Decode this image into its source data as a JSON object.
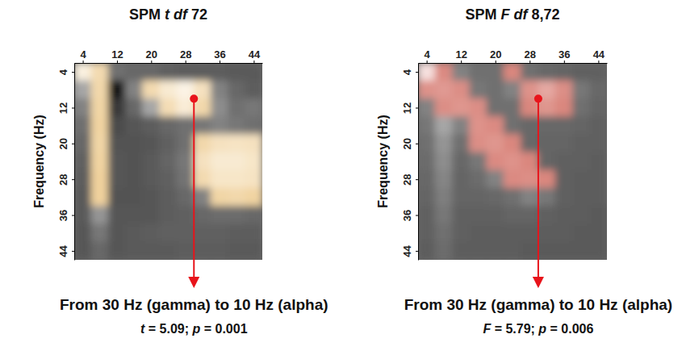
{
  "chart_data": [
    {
      "type": "heatmap",
      "title": "SPM t df 72",
      "ylabel": "Frequency (Hz)",
      "x": [
        4,
        8,
        12,
        16,
        20,
        24,
        28,
        32,
        36,
        40,
        44
      ],
      "y": [
        4,
        8,
        12,
        16,
        20,
        24,
        28,
        32,
        36,
        40,
        44
      ],
      "values": [
        [
          4.5,
          3.5,
          1.0,
          0.8,
          0.8,
          0.6,
          0.5,
          0.5,
          0.5,
          0.4,
          0.4
        ],
        [
          2.5,
          3.4,
          -1.5,
          1.5,
          3.5,
          4.2,
          4.6,
          3.8,
          1.5,
          0.8,
          0.5
        ],
        [
          1.5,
          3.3,
          -0.5,
          0.8,
          2.5,
          3.6,
          4.3,
          3.4,
          1.8,
          1.0,
          1.2
        ],
        [
          1.0,
          3.2,
          0.0,
          0.3,
          0.5,
          0.8,
          1.0,
          1.2,
          1.5,
          1.2,
          1.0
        ],
        [
          0.8,
          3.3,
          0.2,
          0.2,
          0.3,
          0.6,
          1.0,
          3.4,
          3.8,
          3.9,
          3.8
        ],
        [
          0.6,
          3.2,
          0.3,
          0.2,
          0.4,
          0.7,
          1.2,
          3.8,
          4.2,
          4.2,
          4.0
        ],
        [
          0.5,
          3.1,
          0.3,
          0.2,
          0.4,
          0.6,
          1.1,
          3.5,
          4.0,
          4.0,
          3.9
        ],
        [
          0.4,
          3.1,
          0.2,
          0.2,
          0.3,
          0.5,
          0.8,
          1.5,
          3.3,
          3.4,
          3.2
        ],
        [
          0.4,
          2.0,
          0.3,
          0.3,
          0.3,
          0.5,
          0.6,
          0.8,
          0.9,
          0.9,
          0.8
        ],
        [
          0.3,
          1.2,
          0.3,
          0.4,
          0.5,
          0.6,
          0.6,
          0.6,
          0.6,
          0.5,
          0.5
        ],
        [
          0.3,
          0.8,
          0.3,
          0.4,
          0.4,
          0.4,
          0.5,
          0.5,
          0.5,
          0.4,
          0.4
        ]
      ],
      "threshold": 3,
      "color": "#efcf98",
      "xlim": [
        2,
        46
      ],
      "ylim": [
        2,
        46
      ],
      "xticks": [
        4,
        12,
        20,
        28,
        36,
        44
      ],
      "yticks": [
        4,
        12,
        20,
        28,
        36,
        44
      ],
      "annotation": {
        "x": 30,
        "y": 10,
        "text": "From 30 Hz (gamma) to 10 Hz (alpha)",
        "stat": "t = 5.09; p = 0.001"
      }
    },
    {
      "type": "heatmap",
      "title": "SPM F df 8,72",
      "ylabel": "Frequency (Hz)",
      "x": [
        4,
        8,
        12,
        16,
        20,
        24,
        28,
        32,
        36,
        40,
        44
      ],
      "y": [
        4,
        8,
        12,
        16,
        20,
        24,
        28,
        32,
        36,
        40,
        44
      ],
      "values": [
        [
          5.5,
          3.2,
          1.5,
          1.0,
          1.0,
          3.1,
          1.0,
          0.8,
          0.7,
          0.6,
          0.6
        ],
        [
          3.4,
          3.6,
          3.3,
          1.2,
          1.0,
          1.5,
          3.4,
          4.0,
          3.3,
          1.2,
          0.8
        ],
        [
          1.5,
          3.3,
          3.5,
          3.3,
          1.0,
          1.0,
          3.1,
          3.5,
          3.1,
          1.0,
          0.7
        ],
        [
          1.2,
          2.5,
          1.5,
          3.4,
          3.2,
          1.0,
          0.8,
          0.8,
          0.8,
          0.7,
          0.6
        ],
        [
          1.0,
          2.0,
          1.0,
          3.3,
          3.5,
          3.1,
          0.8,
          0.7,
          0.7,
          0.6,
          0.6
        ],
        [
          0.9,
          1.8,
          0.8,
          1.2,
          3.2,
          3.4,
          3.1,
          0.7,
          0.6,
          0.6,
          0.5
        ],
        [
          0.8,
          1.6,
          0.7,
          0.9,
          1.5,
          3.2,
          3.3,
          3.1,
          0.6,
          0.5,
          0.5
        ],
        [
          0.7,
          1.4,
          0.7,
          0.7,
          0.8,
          1.0,
          1.5,
          1.2,
          0.6,
          0.5,
          0.5
        ],
        [
          0.6,
          1.2,
          0.6,
          0.6,
          0.6,
          0.7,
          0.7,
          0.6,
          0.5,
          0.5,
          0.4
        ],
        [
          0.6,
          1.0,
          0.6,
          0.5,
          0.5,
          0.5,
          0.5,
          0.5,
          0.5,
          0.4,
          0.4
        ],
        [
          0.5,
          0.9,
          0.5,
          0.5,
          0.5,
          0.5,
          0.4,
          0.4,
          0.4,
          0.4,
          0.4
        ]
      ],
      "threshold": 3,
      "color": "#d9837a",
      "xlim": [
        2,
        46
      ],
      "ylim": [
        2,
        46
      ],
      "xticks": [
        4,
        12,
        20,
        28,
        36,
        44
      ],
      "yticks": [
        4,
        12,
        20,
        28,
        36,
        44
      ],
      "annotation": {
        "x": 30,
        "y": 10,
        "text": "From 30 Hz (gamma) to 10 Hz (alpha)",
        "stat": "F = 5.79; p = 0.006"
      }
    }
  ]
}
